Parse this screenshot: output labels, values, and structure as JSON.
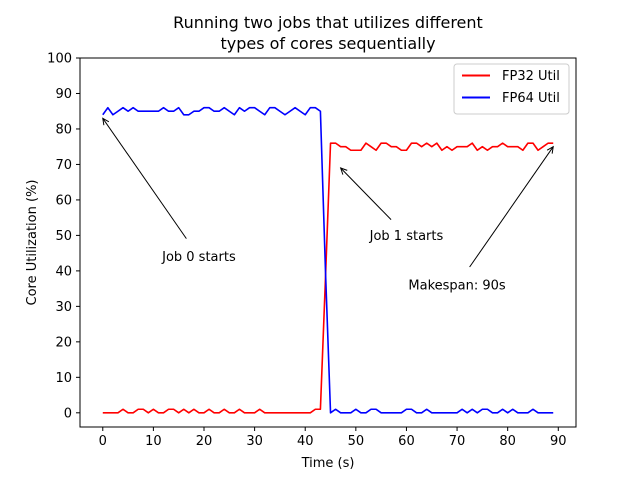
{
  "chart_data": {
    "type": "line",
    "title_lines": [
      "Running two jobs that utilizes different",
      "types of cores sequentially"
    ],
    "xlabel": "Time (s)",
    "ylabel": "Core Utilization (%)",
    "xlim": [
      -4.5,
      93.5
    ],
    "ylim": [
      -4,
      100
    ],
    "xticks": [
      0,
      10,
      20,
      30,
      40,
      50,
      60,
      70,
      80,
      90
    ],
    "yticks": [
      0,
      10,
      20,
      30,
      40,
      50,
      60,
      70,
      80,
      90,
      100
    ],
    "grid": false,
    "legend_position": "top-right",
    "x": [
      0,
      1,
      2,
      3,
      4,
      5,
      6,
      7,
      8,
      9,
      10,
      11,
      12,
      13,
      14,
      15,
      16,
      17,
      18,
      19,
      20,
      21,
      22,
      23,
      24,
      25,
      26,
      27,
      28,
      29,
      30,
      31,
      32,
      33,
      34,
      35,
      36,
      37,
      38,
      39,
      40,
      41,
      42,
      43,
      44,
      45,
      46,
      47,
      48,
      49,
      50,
      51,
      52,
      53,
      54,
      55,
      56,
      57,
      58,
      59,
      60,
      61,
      62,
      63,
      64,
      65,
      66,
      67,
      68,
      69,
      70,
      71,
      72,
      73,
      74,
      75,
      76,
      77,
      78,
      79,
      80,
      81,
      82,
      83,
      84,
      85,
      86,
      87,
      88,
      89
    ],
    "series": [
      {
        "name": "FP32 Util",
        "color": "#ff0000",
        "values": [
          0,
          0,
          0,
          0,
          1,
          0,
          0,
          1,
          1,
          0,
          1,
          0,
          0,
          1,
          1,
          0,
          1,
          0,
          1,
          0,
          0,
          1,
          0,
          0,
          1,
          0,
          0,
          1,
          0,
          0,
          0,
          1,
          0,
          0,
          0,
          0,
          0,
          0,
          0,
          0,
          0,
          0,
          1,
          1,
          38,
          76,
          76,
          75,
          75,
          74,
          74,
          74,
          76,
          75,
          74,
          76,
          76,
          75,
          75,
          74,
          74,
          76,
          76,
          75,
          76,
          75,
          76,
          74,
          75,
          74,
          75,
          75,
          75,
          76,
          74,
          75,
          74,
          75,
          75,
          76,
          75,
          75,
          75,
          74,
          76,
          76,
          74,
          75,
          76,
          76
        ]
      },
      {
        "name": "FP64 Util",
        "color": "#0000ff",
        "values": [
          84,
          86,
          84,
          85,
          86,
          85,
          86,
          85,
          85,
          85,
          85,
          85,
          86,
          85,
          85,
          86,
          84,
          84,
          85,
          85,
          86,
          86,
          85,
          85,
          86,
          85,
          84,
          86,
          85,
          86,
          86,
          85,
          84,
          86,
          86,
          85,
          84,
          85,
          86,
          85,
          84,
          86,
          86,
          85,
          40,
          0,
          1,
          0,
          0,
          0,
          1,
          0,
          0,
          1,
          1,
          0,
          0,
          0,
          0,
          0,
          1,
          1,
          0,
          0,
          1,
          0,
          0,
          0,
          0,
          0,
          0,
          1,
          0,
          1,
          0,
          1,
          1,
          0,
          0,
          1,
          0,
          1,
          0,
          0,
          0,
          1,
          0,
          0,
          0,
          0
        ]
      }
    ],
    "annotations": [
      {
        "text": "Job 0 starts",
        "text_at": [
          19,
          44
        ],
        "arrow_to": [
          0,
          83
        ]
      },
      {
        "text": "Job 1 starts",
        "text_at": [
          60,
          50
        ],
        "arrow_to": [
          47,
          69
        ]
      },
      {
        "text": "Makespan: 90s",
        "text_at": [
          70,
          36
        ],
        "arrow_to": [
          89,
          75
        ]
      }
    ]
  }
}
